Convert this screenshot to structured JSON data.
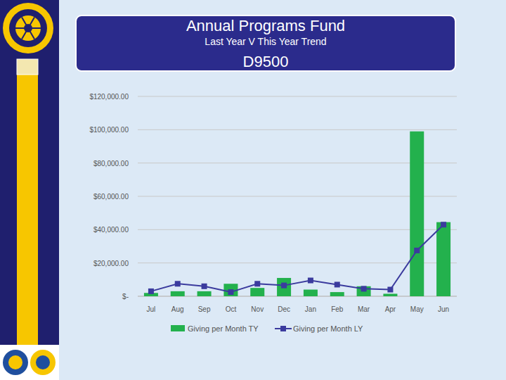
{
  "header": {
    "title": "Annual Programs Fund",
    "subtitle": "Last Year V This Year Trend",
    "district": "D9500"
  },
  "chart_data": {
    "type": "bar",
    "categories": [
      "Jul",
      "Aug",
      "Sep",
      "Oct",
      "Nov",
      "Dec",
      "Jan",
      "Feb",
      "Mar",
      "Apr",
      "May",
      "Jun"
    ],
    "series": [
      {
        "name": "Giving per Month TY",
        "type": "bar",
        "color": "#23b14d",
        "values": [
          2000,
          3000,
          3000,
          7500,
          5000,
          11000,
          4000,
          2500,
          6000,
          1500,
          99000,
          44500
        ]
      },
      {
        "name": "Giving per Month LY",
        "type": "line",
        "color": "#3b3b9e",
        "marker": "square",
        "values": [
          3000,
          7500,
          6000,
          2500,
          7500,
          6500,
          9500,
          7000,
          4500,
          4000,
          27500,
          43000
        ]
      }
    ],
    "ylim": [
      0,
      120000
    ],
    "yticks": [
      {
        "value": 0,
        "label": "$-"
      },
      {
        "value": 20000,
        "label": "$20,000.00"
      },
      {
        "value": 40000,
        "label": "$40,000.00"
      },
      {
        "value": 60000,
        "label": "$60,000.00"
      },
      {
        "value": 80000,
        "label": "$80,000.00"
      },
      {
        "value": 100000,
        "label": "$100,000.00"
      },
      {
        "value": 120000,
        "label": "$120,000.00"
      }
    ],
    "grid": true,
    "legend": "bottom"
  }
}
